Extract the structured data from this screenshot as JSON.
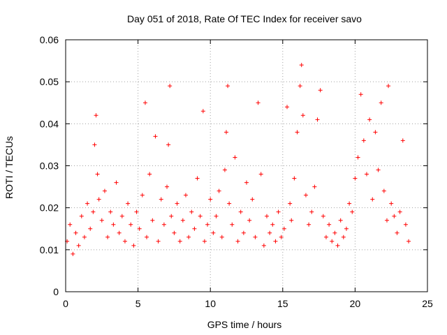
{
  "chart_data": {
    "type": "scatter",
    "title": "Day 051 of 2018, Rate Of TEC Index for receiver savo",
    "xlabel": "GPS time / hours",
    "ylabel": "ROTI / TECUs",
    "xlim": [
      0,
      25
    ],
    "ylim": [
      0,
      0.06
    ],
    "x_ticks": [
      "0",
      "5",
      "10",
      "15",
      "20",
      "25"
    ],
    "y_ticks": [
      "0",
      "0.01",
      "0.02",
      "0.03",
      "0.04",
      "0.05",
      "0.06"
    ],
    "grid": true,
    "marker": "plus",
    "color": "#ff0000",
    "series": [
      {
        "x": [
          0.1,
          0.3,
          0.5,
          0.7,
          0.9,
          1.1,
          1.3,
          1.5,
          1.7,
          1.9,
          2.0,
          2.1,
          2.2,
          2.3,
          2.5,
          2.7,
          2.9,
          3.1,
          3.3,
          3.5,
          3.7,
          3.9,
          4.1,
          4.3,
          4.5,
          4.7,
          4.9,
          5.1,
          5.3,
          5.5,
          5.6,
          5.8,
          6.0,
          6.2,
          6.4,
          6.6,
          6.8,
          7.0,
          7.1,
          7.2,
          7.3,
          7.5,
          7.7,
          7.9,
          8.1,
          8.3,
          8.5,
          8.7,
          8.9,
          9.1,
          9.3,
          9.5,
          9.6,
          9.8,
          10.0,
          10.2,
          10.4,
          10.6,
          10.8,
          11.0,
          11.1,
          11.2,
          11.3,
          11.5,
          11.7,
          11.9,
          12.1,
          12.3,
          12.5,
          12.7,
          12.9,
          13.1,
          13.3,
          13.5,
          13.7,
          13.9,
          14.1,
          14.3,
          14.5,
          14.7,
          14.9,
          15.1,
          15.3,
          15.5,
          15.6,
          15.8,
          16.0,
          16.2,
          16.3,
          16.4,
          16.6,
          16.8,
          17.0,
          17.2,
          17.4,
          17.6,
          17.8,
          18.0,
          18.2,
          18.4,
          18.6,
          18.8,
          19.0,
          19.2,
          19.4,
          19.6,
          19.8,
          20.0,
          20.2,
          20.4,
          20.6,
          20.8,
          21.0,
          21.2,
          21.4,
          21.6,
          21.8,
          22.0,
          22.2,
          22.3,
          22.5,
          22.7,
          22.9,
          23.1,
          23.3,
          23.5,
          23.7
        ],
        "y": [
          0.012,
          0.016,
          0.009,
          0.014,
          0.011,
          0.018,
          0.013,
          0.021,
          0.015,
          0.019,
          0.035,
          0.042,
          0.028,
          0.022,
          0.017,
          0.024,
          0.013,
          0.019,
          0.016,
          0.026,
          0.014,
          0.018,
          0.012,
          0.021,
          0.016,
          0.011,
          0.019,
          0.015,
          0.023,
          0.045,
          0.013,
          0.028,
          0.017,
          0.037,
          0.012,
          0.022,
          0.016,
          0.025,
          0.035,
          0.049,
          0.018,
          0.014,
          0.021,
          0.012,
          0.017,
          0.023,
          0.013,
          0.019,
          0.015,
          0.027,
          0.018,
          0.043,
          0.012,
          0.016,
          0.022,
          0.014,
          0.018,
          0.024,
          0.013,
          0.029,
          0.038,
          0.049,
          0.021,
          0.016,
          0.032,
          0.012,
          0.019,
          0.014,
          0.026,
          0.017,
          0.022,
          0.013,
          0.045,
          0.028,
          0.011,
          0.018,
          0.014,
          0.016,
          0.012,
          0.019,
          0.013,
          0.015,
          0.044,
          0.021,
          0.017,
          0.027,
          0.038,
          0.049,
          0.054,
          0.042,
          0.023,
          0.016,
          0.019,
          0.025,
          0.041,
          0.048,
          0.018,
          0.013,
          0.016,
          0.012,
          0.014,
          0.011,
          0.017,
          0.013,
          0.015,
          0.021,
          0.019,
          0.027,
          0.032,
          0.047,
          0.036,
          0.028,
          0.041,
          0.022,
          0.038,
          0.029,
          0.045,
          0.024,
          0.017,
          0.049,
          0.021,
          0.018,
          0.014,
          0.019,
          0.036,
          0.016,
          0.012
        ]
      }
    ]
  }
}
